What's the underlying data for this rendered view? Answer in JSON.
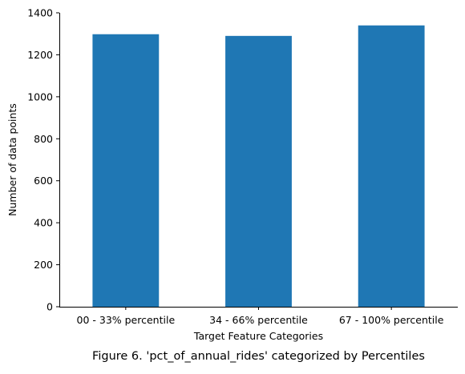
{
  "chart_data": {
    "type": "bar",
    "categories": [
      "00 - 33% percentile",
      "34 - 66% percentile",
      "67 - 100% percentile"
    ],
    "values": [
      1298,
      1290,
      1340
    ],
    "xlabel": "Target Feature Categories",
    "ylabel": "Number of data points",
    "ylim": [
      0,
      1400
    ],
    "yticks": [
      0,
      200,
      400,
      600,
      800,
      1000,
      1200,
      1400
    ],
    "bar_color": "#1f77b4",
    "grid": false,
    "caption": "Figure 6. 'pct_of_annual_rides' categorized by Percentiles"
  }
}
